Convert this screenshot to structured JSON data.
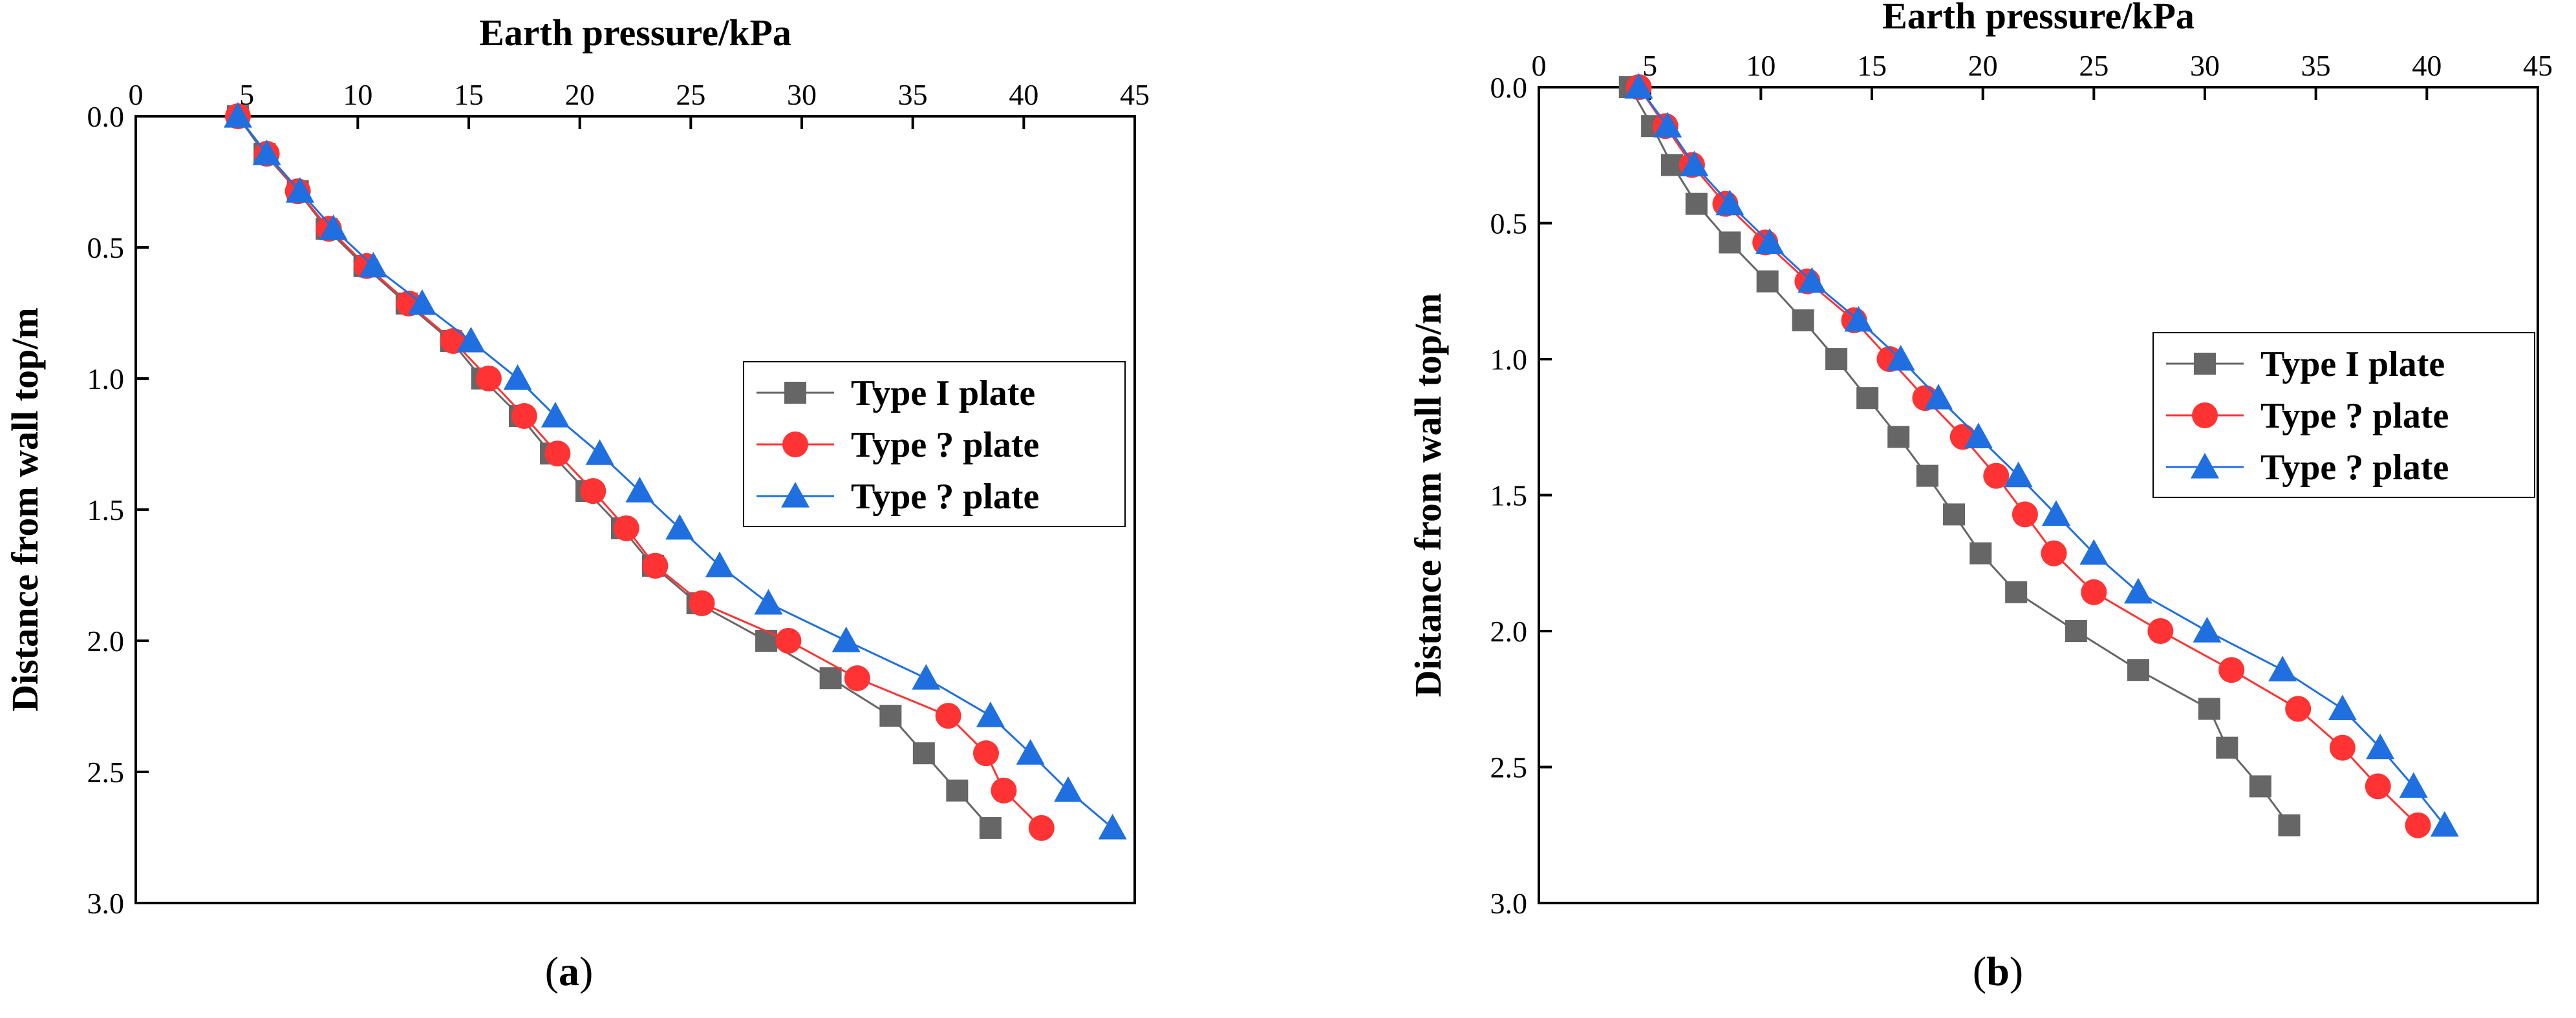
{
  "chart_data": [
    {
      "type": "line",
      "panel_label": "a",
      "xlabel": "Earth pressure/kPa",
      "ylabel": "Distance from wall top/m",
      "xlim": [
        0,
        45
      ],
      "ylim": [
        0,
        3.0
      ],
      "y_inverted": true,
      "x_axis_position": "top",
      "xticks": [
        "0",
        "5",
        "10",
        "15",
        "20",
        "25",
        "30",
        "35",
        "40",
        "45"
      ],
      "yticks": [
        "0.0",
        "0.5",
        "1.0",
        "1.5",
        "2.0",
        "2.5",
        "3.0"
      ],
      "grid": false,
      "legend_position": "right",
      "y": [
        0.0,
        0.143,
        0.286,
        0.429,
        0.571,
        0.714,
        0.857,
        1.0,
        1.143,
        1.286,
        1.429,
        1.571,
        1.714,
        1.857,
        2.0,
        2.143,
        2.286,
        2.429,
        2.571,
        2.714
      ],
      "series": [
        {
          "name": "Type I plate",
          "marker": "square",
          "color": "#666666",
          "x": [
            4.6,
            5.8,
            7.3,
            8.6,
            10.3,
            12.2,
            14.2,
            15.6,
            17.3,
            18.7,
            20.3,
            21.9,
            23.3,
            25.3,
            28.4,
            31.3,
            34.0,
            35.5,
            37.0,
            38.5
          ]
        },
        {
          "name": "Type ?  plate",
          "marker": "circle",
          "color": "#ff3333",
          "x": [
            4.6,
            5.9,
            7.3,
            8.7,
            10.4,
            12.3,
            14.3,
            15.9,
            17.5,
            19.0,
            20.6,
            22.1,
            23.4,
            25.5,
            29.4,
            32.5,
            36.6,
            38.3,
            39.1,
            40.8
          ]
        },
        {
          "name": "Type ?   plate",
          "marker": "triangle",
          "color": "#1f6fe0",
          "x": [
            4.6,
            5.9,
            7.4,
            8.9,
            10.7,
            12.9,
            15.1,
            17.2,
            18.9,
            20.9,
            22.7,
            24.5,
            26.3,
            28.5,
            32.0,
            35.6,
            38.5,
            40.3,
            42.0,
            44.0
          ]
        }
      ]
    },
    {
      "type": "line",
      "panel_label": "b",
      "xlabel": "Earth pressure/kPa",
      "ylabel": "Distance from wall top/m",
      "xlim": [
        0,
        45
      ],
      "ylim": [
        0,
        3.0
      ],
      "y_inverted": true,
      "x_axis_position": "top",
      "xticks": [
        "0",
        "5",
        "10",
        "15",
        "20",
        "25",
        "30",
        "35",
        "40",
        "45"
      ],
      "yticks": [
        "0.0",
        "0.5",
        "1.0",
        "1.5",
        "2.0",
        "2.5",
        "3.0"
      ],
      "grid": false,
      "legend_position": "right",
      "y": [
        0.0,
        0.143,
        0.286,
        0.429,
        0.571,
        0.714,
        0.857,
        1.0,
        1.143,
        1.286,
        1.429,
        1.571,
        1.714,
        1.857,
        2.0,
        2.143,
        2.286,
        2.429,
        2.571,
        2.714
      ],
      "series": [
        {
          "name": "Type I plate",
          "marker": "square",
          "color": "#666666",
          "x": [
            4.1,
            5.1,
            6.0,
            7.1,
            8.6,
            10.3,
            11.9,
            13.4,
            14.8,
            16.2,
            17.5,
            18.7,
            19.9,
            21.5,
            24.2,
            27.0,
            30.2,
            31.0,
            32.5,
            33.8
          ]
        },
        {
          "name": "Type ?  plate",
          "marker": "circle",
          "color": "#ff3333",
          "x": [
            4.5,
            5.7,
            6.9,
            8.4,
            10.2,
            12.1,
            14.2,
            15.8,
            17.4,
            19.1,
            20.6,
            21.9,
            23.2,
            25.0,
            28.0,
            31.2,
            34.2,
            36.2,
            37.8,
            39.6
          ]
        },
        {
          "name": "Type ?   plate",
          "marker": "triangle",
          "color": "#1f6fe0",
          "x": [
            4.5,
            5.8,
            7.0,
            8.6,
            10.4,
            12.3,
            14.4,
            16.3,
            18.0,
            19.8,
            21.6,
            23.3,
            25.0,
            27.0,
            30.1,
            33.5,
            36.2,
            37.9,
            39.4,
            40.8
          ]
        }
      ]
    }
  ]
}
